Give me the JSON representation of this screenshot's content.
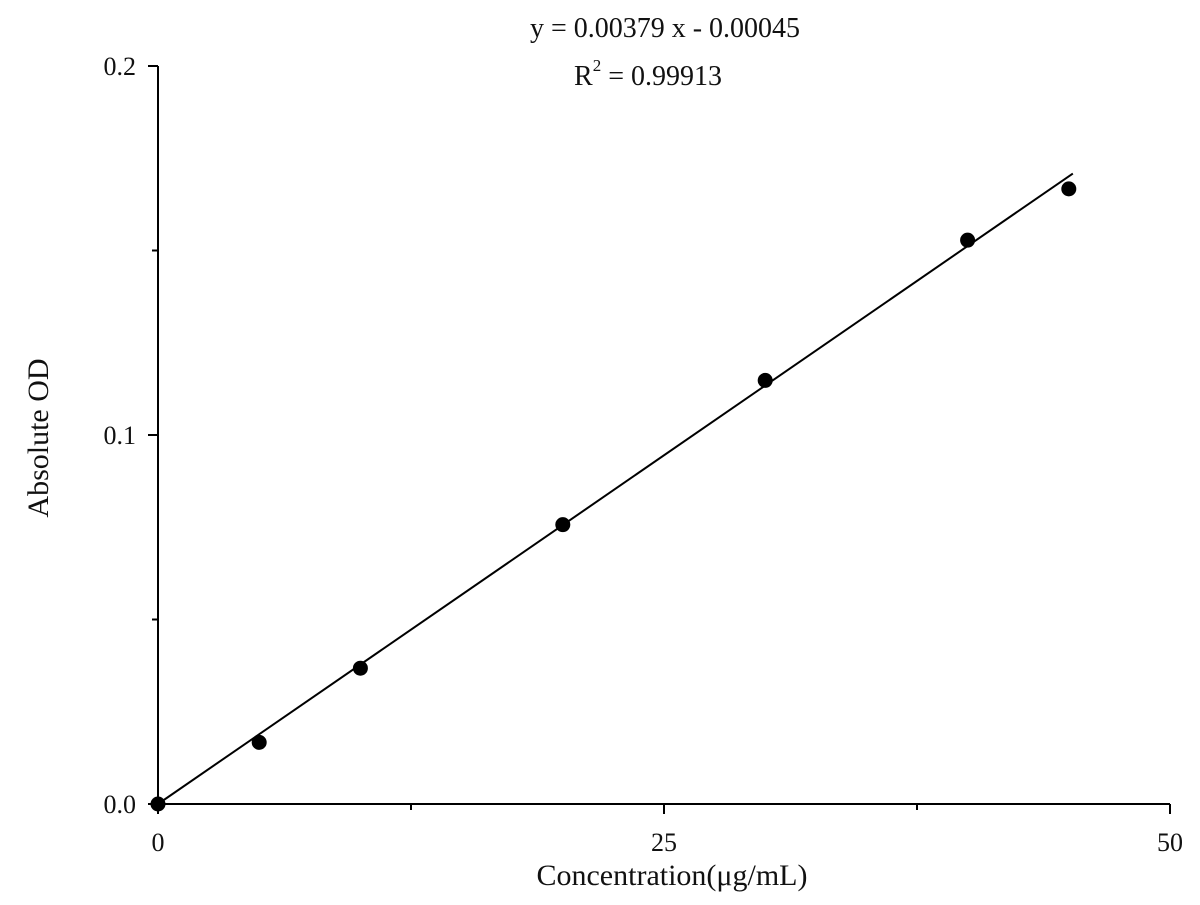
{
  "chart_data": {
    "type": "scatter",
    "equation": "y = 0.00379 x - 0.00045",
    "r2_label": "R",
    "r2_superscript": "2",
    "r2_value": " = 0.99913",
    "xlabel": "Concentration(μg/mL)",
    "ylabel": "Absolute OD",
    "xlim": [
      0,
      50
    ],
    "ylim": [
      0,
      0.2
    ],
    "x_ticks_major": [
      0,
      25,
      50
    ],
    "x_tick_labels": [
      "0",
      "25",
      "50"
    ],
    "x_ticks_minor": [
      12.5,
      37.5
    ],
    "y_ticks_major": [
      0,
      0.1,
      0.2
    ],
    "y_tick_labels": [
      "0.0",
      "0.1",
      "0.2"
    ],
    "y_ticks_minor": [
      0.05,
      0.15
    ],
    "grid": false,
    "series": [
      {
        "x": [
          0,
          5,
          10,
          20,
          30,
          40,
          45
        ],
        "y": [
          0.0,
          0.0167,
          0.0368,
          0.0757,
          0.1148,
          0.1528,
          0.1667
        ]
      }
    ],
    "fit": {
      "slope": 0.00379,
      "intercept": -0.00045,
      "x_range": [
        0,
        45
      ]
    },
    "colors": {
      "marker": "#000000",
      "line": "#000000",
      "axis": "#000000"
    }
  }
}
